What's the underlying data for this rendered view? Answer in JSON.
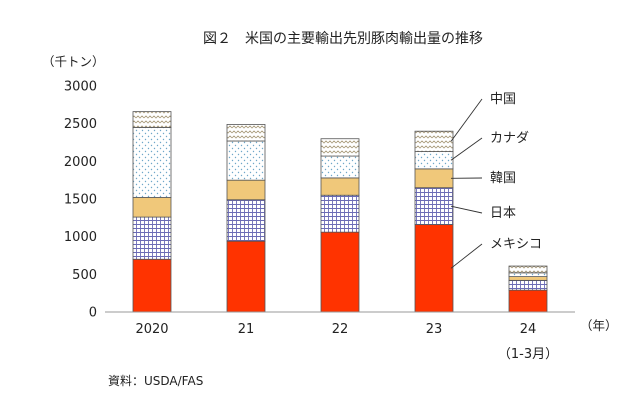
{
  "chart_data": {
    "type": "bar",
    "stacked": true,
    "title": "図２　米国の主要輸出先別豚肉輸出量の推移",
    "ylabel": "（千トン）",
    "xlabel": "（年）",
    "categories": [
      "2020",
      "21",
      "22",
      "23",
      "24"
    ],
    "category_subtitles": [
      "",
      "",
      "",
      "",
      "（1-3月）"
    ],
    "ylim": [
      0,
      3000
    ],
    "yticks": [
      0,
      500,
      1000,
      1500,
      2000,
      2500,
      3000
    ],
    "grid": false,
    "legend": "right",
    "series": [
      {
        "name": "メキシコ",
        "values": [
          700,
          940,
          1060,
          1160,
          290
        ],
        "color": "#ff3300",
        "pattern": "solid"
      },
      {
        "name": "日本",
        "values": [
          560,
          550,
          490,
          490,
          130
        ],
        "color": "#6b6bb5",
        "pattern": "grid"
      },
      {
        "name": "韓国",
        "values": [
          260,
          260,
          230,
          250,
          50
        ],
        "color": "#f0c87a",
        "pattern": "solid"
      },
      {
        "name": "カナダ",
        "values": [
          930,
          520,
          290,
          230,
          50
        ],
        "color": "#88b8d8",
        "pattern": "dots"
      },
      {
        "name": "中国",
        "values": [
          210,
          220,
          230,
          270,
          90
        ],
        "color": "#a89a7a",
        "pattern": "wave"
      }
    ],
    "source": "資料：USDA/FAS"
  }
}
